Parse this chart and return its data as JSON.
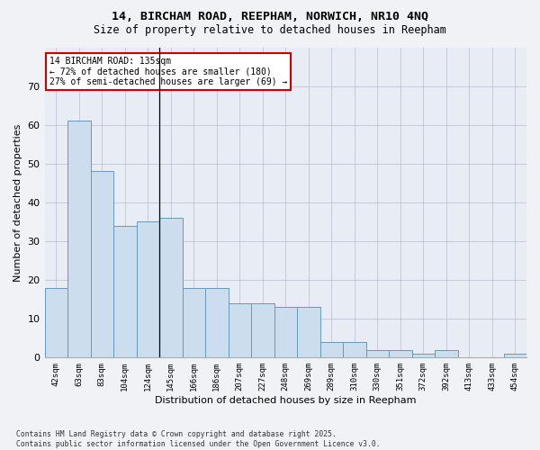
{
  "title": "14, BIRCHAM ROAD, REEPHAM, NORWICH, NR10 4NQ",
  "subtitle": "Size of property relative to detached houses in Reepham",
  "xlabel": "Distribution of detached houses by size in Reepham",
  "ylabel": "Number of detached properties",
  "categories": [
    "42sqm",
    "63sqm",
    "83sqm",
    "104sqm",
    "124sqm",
    "145sqm",
    "166sqm",
    "186sqm",
    "207sqm",
    "227sqm",
    "248sqm",
    "269sqm",
    "289sqm",
    "310sqm",
    "330sqm",
    "351sqm",
    "372sqm",
    "392sqm",
    "413sqm",
    "433sqm",
    "454sqm"
  ],
  "values": [
    18,
    61,
    48,
    34,
    35,
    36,
    18,
    18,
    14,
    14,
    13,
    13,
    4,
    4,
    2,
    2,
    1,
    2,
    0,
    0,
    1
  ],
  "bar_color": "#ccdded",
  "bar_edge_color": "#6699bb",
  "annotation_text_line1": "14 BIRCHAM ROAD: 135sqm",
  "annotation_text_line2": "← 72% of detached houses are smaller (180)",
  "annotation_text_line3": "27% of semi-detached houses are larger (69) →",
  "annotation_box_color": "#ffffff",
  "annotation_box_edge_color": "#cc0000",
  "vline_x_idx": 4,
  "ylim": [
    0,
    80
  ],
  "yticks": [
    0,
    10,
    20,
    30,
    40,
    50,
    60,
    70
  ],
  "grid_color": "#bbbbcc",
  "bg_color": "#e8ecf4",
  "fig_bg_color": "#f0f2f5",
  "footer": "Contains HM Land Registry data © Crown copyright and database right 2025.\nContains public sector information licensed under the Open Government Licence v3.0."
}
